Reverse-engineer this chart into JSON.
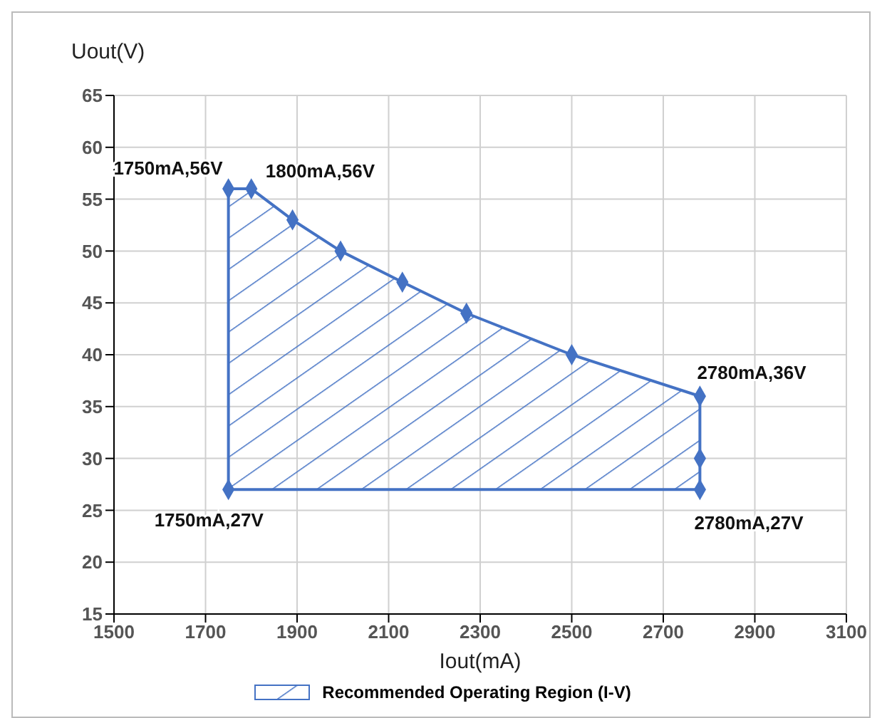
{
  "chart_data": {
    "type": "area",
    "xlabel": "Iout(mA)",
    "ylabel": "Uout(V)",
    "xlim": [
      1500,
      3100
    ],
    "xticks": [
      1500,
      1700,
      1900,
      2100,
      2300,
      2500,
      2700,
      2900,
      3100
    ],
    "ylim": [
      15,
      65
    ],
    "yticks": [
      15,
      20,
      25,
      30,
      35,
      40,
      45,
      50,
      55,
      60,
      65
    ],
    "grid": true,
    "legend": "bottom",
    "marker": "diamond",
    "series": [
      {
        "name": "Recommended Operating Region (I-V)",
        "color": "#4472c4",
        "x": [
          1750,
          1800,
          1890,
          1995,
          2130,
          2270,
          2500,
          2780,
          2780,
          2780,
          1750
        ],
        "values": [
          56,
          56,
          53,
          50,
          47,
          44,
          40,
          36,
          30,
          27,
          27
        ]
      }
    ],
    "annotations": [
      {
        "text": "1750mA,56V",
        "x": 1750,
        "y": 56
      },
      {
        "text": "1800mA,56V",
        "x": 1800,
        "y": 56
      },
      {
        "text": "2780mA,36V",
        "x": 2780,
        "y": 36
      },
      {
        "text": "1750mA,27V",
        "x": 1750,
        "y": 27
      },
      {
        "text": "2780mA,27V",
        "x": 2780,
        "y": 27
      }
    ]
  }
}
